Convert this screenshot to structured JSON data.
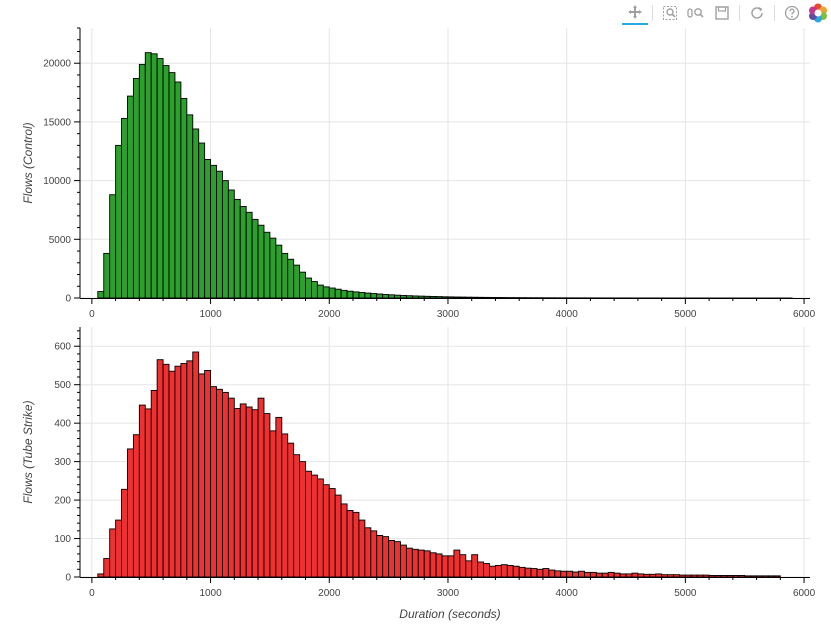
{
  "toolbar": {
    "tools": [
      {
        "name": "pan-tool",
        "icon": "pan-icon",
        "active": true
      },
      {
        "name": "box-zoom-tool",
        "icon": "box-zoom-icon",
        "active": false
      },
      {
        "name": "wheel-zoom-tool",
        "icon": "wheel-zoom-icon",
        "active": false
      },
      {
        "name": "save-tool",
        "icon": "save-icon",
        "active": false
      },
      {
        "name": "reset-tool",
        "icon": "reset-icon",
        "active": false
      },
      {
        "name": "help-tool",
        "icon": "help-icon",
        "active": false
      },
      {
        "name": "bokeh-logo",
        "icon": "bokeh-logo-icon",
        "active": false
      }
    ]
  },
  "chart_data": [
    {
      "type": "bar",
      "ylabel": "Flows (Control)",
      "xlabel": "",
      "xlim": [
        -100,
        6050
      ],
      "ylim": [
        0,
        23000
      ],
      "xticks": [
        0,
        1000,
        2000,
        3000,
        4000,
        5000,
        6000
      ],
      "yticks": [
        0,
        5000,
        10000,
        15000,
        20000
      ],
      "bin_width": 50,
      "bin_start": 50,
      "fill_color": "#2ca02c",
      "line_color": "#000000",
      "values": [
        550,
        3800,
        8800,
        13000,
        15300,
        17200,
        18700,
        19900,
        20900,
        20800,
        20400,
        19800,
        19200,
        18400,
        17000,
        15600,
        14400,
        13200,
        11800,
        11300,
        10800,
        10000,
        9200,
        8400,
        7800,
        7300,
        6700,
        6200,
        5600,
        5100,
        4500,
        3800,
        3300,
        2800,
        2200,
        1700,
        1400,
        1100,
        950,
        850,
        750,
        650,
        580,
        520,
        470,
        420,
        380,
        340,
        300,
        270,
        240,
        215,
        195,
        175,
        160,
        145,
        130,
        118,
        105,
        95,
        85,
        78,
        70,
        64,
        58,
        52,
        47,
        43,
        39,
        35,
        32,
        29,
        26,
        24,
        22,
        20,
        18,
        16,
        15,
        14,
        13,
        12,
        11,
        10,
        9,
        8,
        8,
        7,
        7,
        6,
        6,
        5,
        5,
        5,
        4,
        4,
        4,
        3,
        3,
        3,
        3,
        3,
        3,
        2,
        2,
        2,
        2,
        2,
        2,
        2,
        2,
        1,
        1,
        1,
        1,
        1,
        1
      ]
    },
    {
      "type": "bar",
      "ylabel": "Flows (Tube Strike)",
      "xlabel": "Duration (seconds)",
      "xlim": [
        -100,
        6050
      ],
      "ylim": [
        0,
        650
      ],
      "xticks": [
        0,
        1000,
        2000,
        3000,
        4000,
        5000,
        6000
      ],
      "yticks": [
        0,
        100,
        200,
        300,
        400,
        500,
        600
      ],
      "bin_width": 50,
      "bin_start": 50,
      "fill_color": "#f03030",
      "line_color": "#000000",
      "values": [
        8,
        48,
        125,
        148,
        228,
        333,
        370,
        447,
        437,
        485,
        565,
        553,
        535,
        548,
        555,
        562,
        585,
        528,
        537,
        495,
        488,
        480,
        465,
        438,
        450,
        442,
        435,
        465,
        425,
        380,
        415,
        372,
        348,
        318,
        300,
        275,
        265,
        255,
        240,
        230,
        213,
        190,
        173,
        168,
        148,
        128,
        120,
        108,
        105,
        95,
        92,
        83,
        75,
        72,
        70,
        68,
        63,
        60,
        55,
        55,
        70,
        58,
        42,
        58,
        39,
        35,
        28,
        30,
        32,
        30,
        28,
        25,
        23,
        22,
        20,
        22,
        18,
        16,
        15,
        15,
        13,
        15,
        12,
        12,
        10,
        10,
        12,
        10,
        8,
        8,
        10,
        8,
        7,
        7,
        8,
        6,
        6,
        6,
        5,
        5,
        5,
        5,
        5,
        4,
        4,
        4,
        4,
        4,
        4,
        3,
        3,
        3,
        3,
        3,
        3
      ]
    }
  ]
}
